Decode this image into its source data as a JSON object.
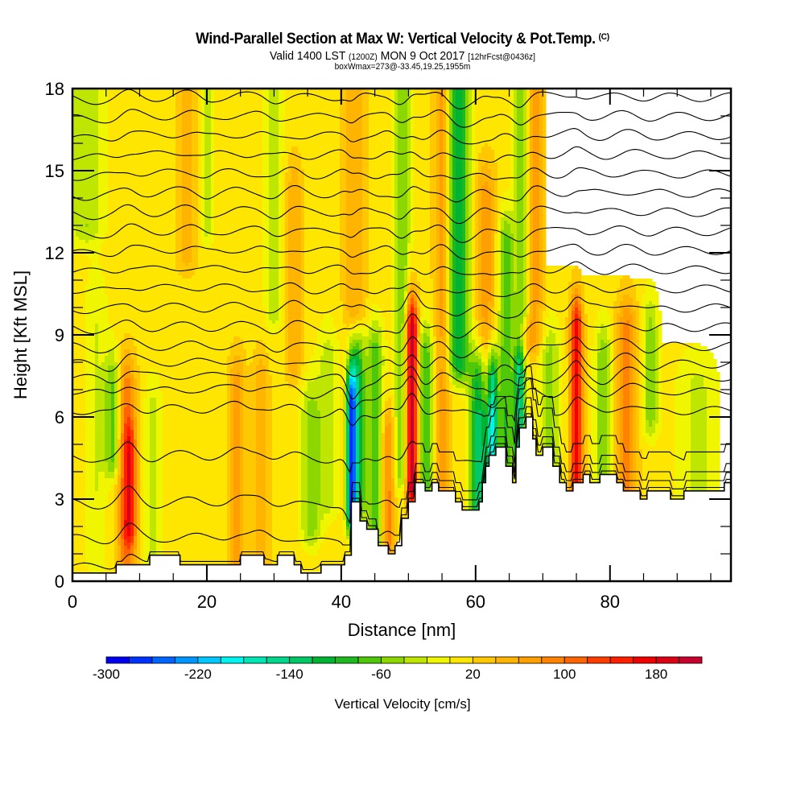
{
  "header": {
    "title": "Wind-Parallel Section at Max W: Vertical Velocity & Pot.Temp.",
    "copyright": "(C)",
    "valid_prefix": "Valid 1400 LST",
    "valid_utc": "(1200Z)",
    "valid_date": "MON 9 Oct 2017",
    "forecast": "[12hrFcst@0436z]",
    "boxwmax": "boxWmax=273@-33.45,19.25,1955m"
  },
  "chart_data": {
    "type": "heatmap",
    "title": "Wind-Parallel Section at Max W: Vertical Velocity & Pot.Temp.",
    "xlabel": "Distance [nm]",
    "ylabel": "Height [Kft MSL]",
    "xlim": [
      0,
      98
    ],
    "ylim": [
      0,
      18
    ],
    "x_ticks": [
      0,
      20,
      40,
      60,
      80
    ],
    "x_tick_labels": [
      "0",
      "20",
      "40",
      "60",
      "80"
    ],
    "x_minor_step": 5,
    "y_ticks": [
      0,
      3,
      6,
      9,
      12,
      15,
      18
    ],
    "y_tick_labels": [
      "0",
      "3",
      "6",
      "9",
      "12",
      "15",
      "18"
    ],
    "y_minor_step": 1,
    "colorbar": {
      "title": "Vertical Velocity [cm/s]",
      "min": -300,
      "max": 220,
      "step": 20,
      "tick_values": [
        -300,
        -220,
        -140,
        -60,
        20,
        100,
        180
      ],
      "tick_labels": [
        "-300",
        "-220",
        "-140",
        "-60",
        "20",
        "100",
        "180"
      ],
      "colors": [
        "#0000f0",
        "#0032ff",
        "#0064ff",
        "#0096ff",
        "#00c8ff",
        "#00f5f0",
        "#00e6b4",
        "#00d78c",
        "#00c864",
        "#00b432",
        "#1eb91e",
        "#50c80a",
        "#8cd700",
        "#bee600",
        "#f0f500",
        "#ffe600",
        "#ffc800",
        "#ffb400",
        "#ffa000",
        "#ff8200",
        "#ff6400",
        "#ff3c00",
        "#ff1e00",
        "#f00000",
        "#dc0014",
        "#c8002d"
      ]
    },
    "background_w": 10,
    "w_features": [
      {
        "x": 2,
        "w": 2.5,
        "z0": 13,
        "z1": 18,
        "w_cms": -50
      },
      {
        "x": 3.5,
        "w": 1.5,
        "z0": 1,
        "z1": 10,
        "w_cms": -30
      },
      {
        "x": 6,
        "w": 1.2,
        "z0": 4.5,
        "z1": 7,
        "w_cms": -80
      },
      {
        "x": 8,
        "w": 1.4,
        "z0": 0.7,
        "z1": 7,
        "w_cms": 80
      },
      {
        "x": 8.5,
        "w": 1,
        "z0": 2,
        "z1": 4.5,
        "w_cms": 100
      },
      {
        "x": 12,
        "w": 1.2,
        "z0": 0.7,
        "z1": 6,
        "w_cms": -40
      },
      {
        "x": 17,
        "w": 1.5,
        "z0": 12,
        "z1": 18,
        "w_cms": 40
      },
      {
        "x": 20,
        "w": 1,
        "z0": 13,
        "z1": 18,
        "w_cms": -40
      },
      {
        "x": 24.5,
        "w": 1.2,
        "z0": 0.7,
        "z1": 7,
        "w_cms": 60
      },
      {
        "x": 28,
        "w": 1.2,
        "z0": 0.7,
        "z1": 7,
        "w_cms": 50
      },
      {
        "x": 30,
        "w": 1.2,
        "z0": 10,
        "z1": 18,
        "w_cms": -50
      },
      {
        "x": 33,
        "w": 1.2,
        "z0": 8,
        "z1": 14,
        "w_cms": 50
      },
      {
        "x": 35.5,
        "w": 1.5,
        "z0": 2,
        "z1": 6,
        "w_cms": -60
      },
      {
        "x": 38,
        "w": 1.5,
        "z0": 3,
        "z1": 8,
        "w_cms": -40
      },
      {
        "x": 41.5,
        "w": 0.7,
        "z0": 2.5,
        "z1": 6.5,
        "w_cms": -240
      },
      {
        "x": 42.5,
        "w": 1.0,
        "z0": 3,
        "z1": 7.5,
        "w_cms": -120
      },
      {
        "x": 45,
        "w": 1.2,
        "z0": 1.5,
        "z1": 8,
        "w_cms": -90
      },
      {
        "x": 42,
        "w": 1.6,
        "z0": 10,
        "z1": 18,
        "w_cms": 50
      },
      {
        "x": 47,
        "w": 1,
        "z0": 1.5,
        "z1": 5,
        "w_cms": 80
      },
      {
        "x": 49,
        "w": 1.2,
        "z0": 4,
        "z1": 18,
        "w_cms": -70
      },
      {
        "x": 50.5,
        "w": 0.9,
        "z0": 3.5,
        "z1": 9,
        "w_cms": 220
      },
      {
        "x": 52.5,
        "w": 1.2,
        "z0": 3,
        "z1": 8,
        "w_cms": -90
      },
      {
        "x": 55,
        "w": 1.2,
        "z0": 3,
        "z1": 18,
        "w_cms": 60
      },
      {
        "x": 57.5,
        "w": 1.6,
        "z0": 8,
        "z1": 18,
        "w_cms": -120
      },
      {
        "x": 60.5,
        "w": 1.3,
        "z0": 2.8,
        "z1": 7,
        "w_cms": -150
      },
      {
        "x": 62.5,
        "w": 0.8,
        "z0": 3.5,
        "z1": 7,
        "w_cms": -190
      },
      {
        "x": 61.5,
        "w": 1.5,
        "z0": 7,
        "z1": 14,
        "w_cms": 60
      },
      {
        "x": 64.5,
        "w": 1.1,
        "z0": 4.5,
        "z1": 12,
        "w_cms": -90
      },
      {
        "x": 66.5,
        "w": 0.8,
        "z0": 5,
        "z1": 7.5,
        "w_cms": -160
      },
      {
        "x": 67,
        "w": 1.2,
        "z0": 10,
        "z1": 18,
        "w_cms": -80
      },
      {
        "x": 68.5,
        "w": 1.5,
        "z0": 9,
        "z1": 18,
        "w_cms": 70
      },
      {
        "x": 71,
        "w": 1.5,
        "z0": 3,
        "z1": 8,
        "w_cms": -60
      },
      {
        "x": 75,
        "w": 0.9,
        "z0": 3.3,
        "z1": 9,
        "w_cms": 170
      },
      {
        "x": 79,
        "w": 1.2,
        "z0": 4,
        "z1": 8,
        "w_cms": -70
      },
      {
        "x": 82.5,
        "w": 1.5,
        "z0": 3.2,
        "z1": 9,
        "w_cms": 80
      },
      {
        "x": 86,
        "w": 1.2,
        "z0": 6,
        "z1": 9,
        "w_cms": -60
      },
      {
        "x": 93,
        "w": 3,
        "z0": 3,
        "z1": 7,
        "w_cms": -35
      }
    ],
    "isentrope_heights_kft": [
      0.6,
      1.6,
      2.9,
      4.6,
      6.3,
      7.0,
      7.5,
      8.0,
      8.6,
      9.3,
      10.0,
      10.7,
      11.4,
      12.1,
      12.8,
      13.5,
      14.2,
      14.9,
      15.6,
      16.3,
      17.0,
      17.7
    ],
    "terrain_steps": [
      [
        0,
        0.3
      ],
      [
        6.5,
        0.6
      ],
      [
        11.5,
        0.95
      ],
      [
        16,
        0.6
      ],
      [
        25,
        0.95
      ],
      [
        28.5,
        0.6
      ],
      [
        30.5,
        0.95
      ],
      [
        33,
        0.6
      ],
      [
        34,
        0.3
      ],
      [
        37,
        0.6
      ],
      [
        40.5,
        0.95
      ],
      [
        41.5,
        2.9
      ],
      [
        42.8,
        2.2
      ],
      [
        43.8,
        1.9
      ],
      [
        45.5,
        1.3
      ],
      [
        47,
        1.0
      ],
      [
        48,
        1.3
      ],
      [
        49,
        2.3
      ],
      [
        50,
        2.9
      ],
      [
        51,
        3.6
      ],
      [
        52.5,
        3.3
      ],
      [
        53.5,
        3.6
      ],
      [
        54.5,
        3.3
      ],
      [
        56,
        3.3
      ],
      [
        57,
        2.9
      ],
      [
        58,
        2.6
      ],
      [
        60.5,
        2.9
      ],
      [
        61,
        3.6
      ],
      [
        61.5,
        4.2
      ],
      [
        62,
        4.6
      ],
      [
        63,
        4.9
      ],
      [
        64,
        4.9
      ],
      [
        64.5,
        4.2
      ],
      [
        65.5,
        3.6
      ],
      [
        66,
        4.9
      ],
      [
        66.5,
        5.6
      ],
      [
        67.5,
        6.0
      ],
      [
        68.5,
        5.2
      ],
      [
        69,
        4.6
      ],
      [
        70,
        4.9
      ],
      [
        71.5,
        4.2
      ],
      [
        72.5,
        3.6
      ],
      [
        73.5,
        3.3
      ],
      [
        74.5,
        3.6
      ],
      [
        76,
        3.9
      ],
      [
        77,
        3.6
      ],
      [
        78.5,
        3.9
      ],
      [
        81,
        3.6
      ],
      [
        82,
        3.3
      ],
      [
        84,
        3.3
      ],
      [
        84.5,
        3.0
      ],
      [
        85.5,
        3.3
      ],
      [
        89,
        3.0
      ],
      [
        91,
        3.3
      ],
      [
        97,
        3.6
      ]
    ]
  }
}
